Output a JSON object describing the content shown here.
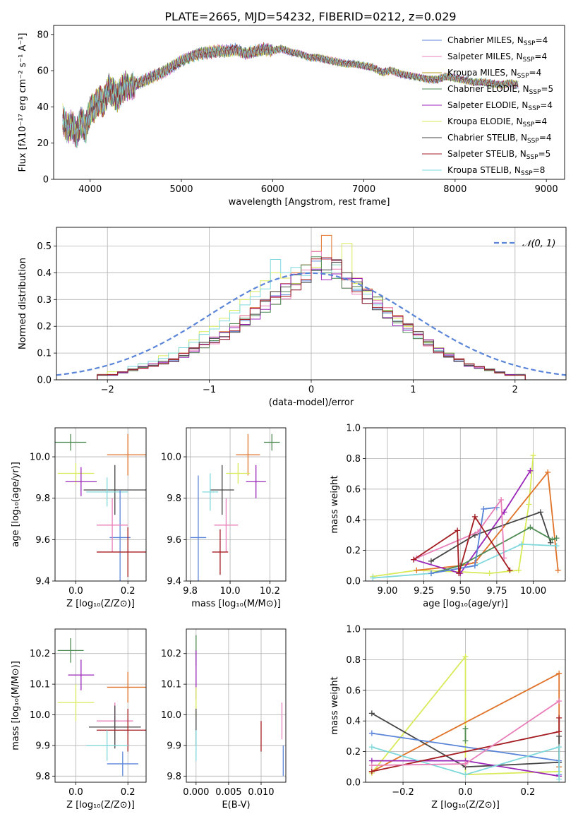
{
  "title": "PLATE=2665, MJD=54232, FIBERID=0212, z=0.029",
  "colors": {
    "Chabrier MILES": "#5b85d8",
    "Salpeter MILES": "#e87fb8",
    "Kroupa MILES": "#b59a1e",
    "Chabrier ELODIE": "#4e8a53",
    "Salpeter ELODIE": "#9a26b8",
    "Kroupa ELODIE": "#d9ea5a",
    "Chabrier STELIB": "#444444",
    "Salpeter STELIB": "#a31d22",
    "Kroupa STELIB": "#7fd8dc",
    "extra": "#e0732a"
  },
  "chart_data": [
    {
      "type": "line",
      "panel": "spectrum",
      "xlabel": "wavelength [Angstrom, rest frame]",
      "ylabel": "Flux [fλ10⁻¹⁷ erg cm⁻² s⁻¹ A⁻¹]",
      "xlim": [
        3600,
        9200
      ],
      "ylim": [
        0,
        85
      ],
      "xticks": [
        "4000",
        "5000",
        "6000",
        "7000",
        "8000",
        "9000"
      ],
      "yticks": [
        "0",
        "20",
        "40",
        "60",
        "80"
      ],
      "legend_position": "upper right",
      "legend": [
        {
          "imf": "Chabrier",
          "lib": "MILES",
          "nssp": "4",
          "color_key": "Chabrier MILES"
        },
        {
          "imf": "Salpeter",
          "lib": "MILES",
          "nssp": "4",
          "color_key": "Salpeter MILES"
        },
        {
          "imf": "Kroupa",
          "lib": "MILES",
          "nssp": "4",
          "color_key": "Kroupa MILES"
        },
        {
          "imf": "Chabrier",
          "lib": "ELODIE",
          "nssp": "5",
          "color_key": "Chabrier ELODIE"
        },
        {
          "imf": "Salpeter",
          "lib": "ELODIE",
          "nssp": "4",
          "color_key": "Salpeter ELODIE"
        },
        {
          "imf": "Kroupa",
          "lib": "ELODIE",
          "nssp": "4",
          "color_key": "Kroupa ELODIE"
        },
        {
          "imf": "Chabrier",
          "lib": "STELIB",
          "nssp": "4",
          "color_key": "Chabrier STELIB"
        },
        {
          "imf": "Salpeter",
          "lib": "STELIB",
          "nssp": "5",
          "color_key": "Salpeter STELIB"
        },
        {
          "imf": "Kroupa",
          "lib": "STELIB",
          "nssp": "8",
          "color_key": "Kroupa STELIB"
        }
      ],
      "x": [
        3700,
        3750,
        3800,
        3850,
        3900,
        3950,
        4000,
        4050,
        4100,
        4150,
        4200,
        4250,
        4300,
        4350,
        4400,
        4500,
        4600,
        4700,
        4800,
        4900,
        5000,
        5100,
        5200,
        5300,
        5400,
        5500,
        5600,
        5700,
        5800,
        5900,
        6000,
        6100,
        6200,
        6300,
        6400,
        6500,
        6600,
        6700,
        6800,
        6900,
        7000,
        7100,
        7200,
        7300,
        7400,
        7500,
        7600,
        7700,
        7800,
        7900,
        8000,
        8100,
        8200,
        8300,
        8400,
        8500,
        8600,
        8700
      ],
      "y": [
        33,
        28,
        30,
        25,
        32,
        28,
        38,
        40,
        44,
        42,
        50,
        48,
        45,
        50,
        52,
        53,
        55,
        57,
        59,
        62,
        65,
        67,
        69,
        70,
        71,
        71,
        72,
        70,
        71,
        72,
        71,
        72,
        70,
        69,
        67,
        67,
        66,
        65,
        64,
        64,
        63,
        62,
        59,
        60,
        58,
        57,
        56,
        55,
        55,
        57,
        56,
        55,
        54,
        54,
        53,
        52,
        53,
        52
      ]
    },
    {
      "type": "bar",
      "panel": "residual histogram",
      "xlabel": "(data-model)/error",
      "ylabel": "Normed distribution",
      "xlim": [
        -2.5,
        2.5
      ],
      "ylim": [
        0,
        0.57
      ],
      "xticks": [
        "−2",
        "−1",
        "0",
        "1",
        "2"
      ],
      "yticks": [
        "0.0",
        "0.1",
        "0.2",
        "0.3",
        "0.4",
        "0.5"
      ],
      "legend": "𝒩(0, 1)",
      "legend_position": "upper right",
      "bin_width": 0.1,
      "series": [
        {
          "color_key": "extra",
          "values": [
            0.02,
            0.02,
            0.03,
            0.04,
            0.05,
            0.06,
            0.07,
            0.08,
            0.1,
            0.12,
            0.14,
            0.16,
            0.18,
            0.21,
            0.24,
            0.27,
            0.3,
            0.33,
            0.36,
            0.4,
            0.43,
            0.48,
            0.54,
            0.45,
            0.4,
            0.38,
            0.34,
            0.31,
            0.27,
            0.24,
            0.21,
            0.18,
            0.15,
            0.12,
            0.1,
            0.08,
            0.06,
            0.05,
            0.04,
            0.03,
            0.02,
            0.02
          ]
        },
        {
          "color_key": "Kroupa ELODIE",
          "values": [
            0.02,
            0.03,
            0.03,
            0.04,
            0.06,
            0.07,
            0.09,
            0.1,
            0.12,
            0.15,
            0.18,
            0.2,
            0.23,
            0.26,
            0.3,
            0.33,
            0.37,
            0.4,
            0.38,
            0.36,
            0.4,
            0.42,
            0.45,
            0.43,
            0.51,
            0.36,
            0.33,
            0.3,
            0.26,
            0.23,
            0.2,
            0.17,
            0.14,
            0.12,
            0.1,
            0.08,
            0.06,
            0.05,
            0.04,
            0.03,
            0.02,
            0.02
          ]
        },
        {
          "color_key": "Kroupa STELIB",
          "values": [
            0.02,
            0.02,
            0.03,
            0.05,
            0.06,
            0.07,
            0.08,
            0.1,
            0.12,
            0.14,
            0.17,
            0.19,
            0.22,
            0.25,
            0.28,
            0.31,
            0.34,
            0.45,
            0.4,
            0.42,
            0.39,
            0.41,
            0.4,
            0.43,
            0.38,
            0.34,
            0.32,
            0.28,
            0.25,
            0.22,
            0.19,
            0.16,
            0.13,
            0.11,
            0.09,
            0.07,
            0.06,
            0.05,
            0.04,
            0.03,
            0.02,
            0.02
          ]
        }
      ],
      "curve_mean": 0,
      "curve_sigma": 1
    },
    {
      "type": "scatter",
      "panel": "age vs Z",
      "xlabel": "Z [log₁₀(Z/Z⊙)]",
      "ylabel": "age  [log₁₀(age/yr)]",
      "xlim": [
        -0.08,
        0.27
      ],
      "ylim": [
        9.4,
        10.14
      ],
      "xticks": [
        "0.0",
        "0.2"
      ],
      "yticks": [
        "9.4",
        "9.6",
        "9.8",
        "10.0"
      ],
      "points": [
        {
          "color_key": "Chabrier ELODIE",
          "x": -0.02,
          "y": 10.07,
          "ex": 0.06,
          "ey": 0.04
        },
        {
          "color_key": "extra",
          "x": 0.2,
          "y": 10.01,
          "ex": 0.08,
          "ey": 0.1
        },
        {
          "color_key": "Kroupa ELODIE",
          "x": 0.0,
          "y": 9.92,
          "ex": 0.07,
          "ey": 0.05
        },
        {
          "color_key": "Salpeter ELODIE",
          "x": 0.02,
          "y": 9.88,
          "ex": 0.06,
          "ey": 0.07
        },
        {
          "color_key": "Chabrier STELIB",
          "x": 0.15,
          "y": 9.84,
          "ex": 0.12,
          "ey": 0.12
        },
        {
          "color_key": "Kroupa STELIB",
          "x": 0.12,
          "y": 9.83,
          "ex": 0.08,
          "ey": 0.07
        },
        {
          "color_key": "Chabrier MILES",
          "x": 0.17,
          "y": 9.61,
          "ex": 0.04,
          "ey": 0.23
        },
        {
          "color_key": "Salpeter MILES",
          "x": 0.14,
          "y": 9.67,
          "ex": 0.06,
          "ey": 0.13
        },
        {
          "color_key": "Salpeter STELIB",
          "x": 0.2,
          "y": 9.54,
          "ex": 0.12,
          "ey": 0.12
        }
      ]
    },
    {
      "type": "scatter",
      "panel": "age vs mass",
      "xlabel": "mass [log₁₀(M/M⊙)]",
      "ylabel": "",
      "xlim": [
        9.78,
        10.28
      ],
      "ylim": [
        9.4,
        10.14
      ],
      "xticks": [
        "9.8",
        "10.0",
        "10.2"
      ],
      "yticks": [
        "9.4",
        "9.6",
        "9.8",
        "10.0"
      ],
      "points": [
        {
          "color_key": "Chabrier ELODIE",
          "x": 10.21,
          "y": 10.07,
          "ex": 0.04,
          "ey": 0.04
        },
        {
          "color_key": "extra",
          "x": 10.09,
          "y": 10.01,
          "ex": 0.06,
          "ey": 0.1
        },
        {
          "color_key": "Kroupa ELODIE",
          "x": 10.04,
          "y": 9.92,
          "ex": 0.06,
          "ey": 0.05
        },
        {
          "color_key": "Salpeter ELODIE",
          "x": 10.13,
          "y": 9.88,
          "ex": 0.05,
          "ey": 0.08
        },
        {
          "color_key": "Chabrier STELIB",
          "x": 9.96,
          "y": 9.84,
          "ex": 0.06,
          "ey": 0.12
        },
        {
          "color_key": "Kroupa STELIB",
          "x": 9.9,
          "y": 9.83,
          "ex": 0.04,
          "ey": 0.09
        },
        {
          "color_key": "Chabrier MILES",
          "x": 9.84,
          "y": 9.61,
          "ex": 0.04,
          "ey": 0.3
        },
        {
          "color_key": "Salpeter MILES",
          "x": 9.98,
          "y": 9.67,
          "ex": 0.06,
          "ey": 0.13
        },
        {
          "color_key": "Salpeter STELIB",
          "x": 9.95,
          "y": 9.54,
          "ex": 0.04,
          "ey": 0.11
        }
      ]
    },
    {
      "type": "line",
      "panel": "mass weight vs age",
      "xlabel": "age  [log₁₀(age/yr)]",
      "ylabel": "mass weight",
      "xlim": [
        8.85,
        10.22
      ],
      "ylim": [
        0,
        1.0
      ],
      "xticks": [
        "9.00",
        "9.25",
        "9.50",
        "9.75",
        "10.00"
      ],
      "yticks": [
        "0.0",
        "0.2",
        "0.4",
        "0.6",
        "0.8",
        "1.0"
      ],
      "series": [
        {
          "color_key": "Kroupa ELODIE",
          "x": [
            8.9,
            9.2,
            9.5,
            9.7,
            9.9,
            9.97,
            10.0
          ],
          "y": [
            0.03,
            0.07,
            0.06,
            0.05,
            0.07,
            0.5,
            0.82
          ]
        },
        {
          "color_key": "extra",
          "x": [
            9.2,
            9.5,
            9.6,
            10.1,
            10.17
          ],
          "y": [
            0.07,
            0.1,
            0.12,
            0.71,
            0.07
          ]
        },
        {
          "color_key": "Salpeter ELODIE",
          "x": [
            9.18,
            9.5,
            9.8,
            9.98
          ],
          "y": [
            0.14,
            0.05,
            0.45,
            0.72
          ]
        },
        {
          "color_key": "Chabrier STELIB",
          "x": [
            9.3,
            9.6,
            10.05,
            10.12
          ],
          "y": [
            0.13,
            0.3,
            0.45,
            0.25
          ]
        },
        {
          "color_key": "Chabrier ELODIE",
          "x": [
            9.3,
            9.5,
            9.98,
            10.13,
            10.16
          ],
          "y": [
            0.05,
            0.1,
            0.35,
            0.27,
            0.28
          ]
        },
        {
          "color_key": "Kroupa STELIB",
          "x": [
            8.9,
            9.3,
            9.6,
            9.92,
            10.16
          ],
          "y": [
            0.02,
            0.05,
            0.1,
            0.24,
            0.23
          ]
        },
        {
          "color_key": "Chabrier MILES",
          "x": [
            9.3,
            9.6,
            9.66,
            9.75
          ],
          "y": [
            0.05,
            0.1,
            0.47,
            0.48
          ]
        },
        {
          "color_key": "Salpeter MILES",
          "x": [
            9.2,
            9.62,
            9.78,
            9.8
          ],
          "y": [
            0.15,
            0.32,
            0.53,
            0.15
          ]
        },
        {
          "color_key": "Salpeter STELIB",
          "x": [
            9.18,
            9.48,
            9.49,
            9.6,
            9.84
          ],
          "y": [
            0.14,
            0.33,
            0.05,
            0.42,
            0.07
          ]
        }
      ]
    },
    {
      "type": "scatter",
      "panel": "mass vs Z",
      "xlabel": "Z [log₁₀(Z/Z⊙)]",
      "ylabel": "mass [log₁₀(M/M⊙)]",
      "xlim": [
        -0.08,
        0.27
      ],
      "ylim": [
        9.78,
        10.28
      ],
      "xticks": [
        "0.0",
        "0.2"
      ],
      "yticks": [
        "9.8",
        "9.9",
        "10.0",
        "10.1",
        "10.2"
      ],
      "points": [
        {
          "color_key": "Chabrier ELODIE",
          "x": -0.02,
          "y": 10.21,
          "ex": 0.05,
          "ey": 0.04
        },
        {
          "color_key": "Salpeter ELODIE",
          "x": 0.02,
          "y": 10.13,
          "ex": 0.05,
          "ey": 0.05
        },
        {
          "color_key": "extra",
          "x": 0.2,
          "y": 10.09,
          "ex": 0.08,
          "ey": 0.05
        },
        {
          "color_key": "Kroupa ELODIE",
          "x": 0.0,
          "y": 10.04,
          "ex": 0.07,
          "ey": 0.06
        },
        {
          "color_key": "Salpeter MILES",
          "x": 0.15,
          "y": 9.98,
          "ex": 0.07,
          "ey": 0.06
        },
        {
          "color_key": "Chabrier STELIB",
          "x": 0.15,
          "y": 9.96,
          "ex": 0.1,
          "ey": 0.07
        },
        {
          "color_key": "Salpeter STELIB",
          "x": 0.2,
          "y": 9.95,
          "ex": 0.12,
          "ey": 0.07
        },
        {
          "color_key": "Kroupa STELIB",
          "x": 0.12,
          "y": 9.9,
          "ex": 0.08,
          "ey": 0.05
        },
        {
          "color_key": "Chabrier MILES",
          "x": 0.18,
          "y": 9.84,
          "ex": 0.06,
          "ey": 0.04
        }
      ]
    },
    {
      "type": "scatter",
      "panel": "mass vs E(B-V)",
      "xlabel": "E(B-V)",
      "ylabel": "",
      "xlim": [
        -0.0015,
        0.0138
      ],
      "ylim": [
        9.78,
        10.28
      ],
      "xticks": [
        "0.000",
        "0.005",
        "0.010"
      ],
      "yticks": [
        "9.8",
        "9.9",
        "10.0",
        "10.1",
        "10.2"
      ],
      "points": [
        {
          "color_key": "Chabrier ELODIE",
          "x": 0.0,
          "y": 10.21,
          "ex": 0.0,
          "ey": 0.05
        },
        {
          "color_key": "Salpeter ELODIE",
          "x": 0.0,
          "y": 10.13,
          "ex": 0.0,
          "ey": 0.08
        },
        {
          "color_key": "Kroupa ELODIE",
          "x": 0.0,
          "y": 10.04,
          "ex": 0.0,
          "ey": 0.05
        },
        {
          "color_key": "Chabrier STELIB",
          "x": 0.0,
          "y": 9.96,
          "ex": 0.0,
          "ey": 0.06
        },
        {
          "color_key": "Kroupa STELIB",
          "x": 0.0,
          "y": 9.9,
          "ex": 0.0,
          "ey": 0.05
        },
        {
          "color_key": "Salpeter STELIB",
          "x": 0.01,
          "y": 9.93,
          "ex": 0.0,
          "ey": 0.05
        },
        {
          "color_key": "Salpeter MILES",
          "x": 0.0132,
          "y": 9.98,
          "ex": 0.0,
          "ey": 0.06
        },
        {
          "color_key": "Chabrier MILES",
          "x": 0.0134,
          "y": 9.85,
          "ex": 0.0,
          "ey": 0.05
        }
      ]
    },
    {
      "type": "line",
      "panel": "mass weight vs Z",
      "xlabel": "Z [log₁₀(Z/Z⊙)]",
      "ylabel": "mass weight",
      "xlim": [
        -0.32,
        0.32
      ],
      "ylim": [
        0,
        1.0
      ],
      "xticks": [
        "−0.2",
        "0.0",
        "0.2"
      ],
      "yticks": [
        "0.0",
        "0.2",
        "0.4",
        "0.6",
        "0.8",
        "1.0"
      ],
      "series": [
        {
          "color_key": "Kroupa ELODIE",
          "x": [
            -0.3,
            0.0,
            0.0,
            0.3
          ],
          "y": [
            0.06,
            0.82,
            0.05,
            0.07
          ]
        },
        {
          "color_key": "extra",
          "x": [
            -0.3,
            0.3,
            0.3
          ],
          "y": [
            0.07,
            0.71,
            0.1
          ]
        },
        {
          "color_key": "Chabrier STELIB",
          "x": [
            -0.3,
            0.0,
            0.3,
            0.3
          ],
          "y": [
            0.45,
            0.1,
            0.13,
            0.3
          ]
        },
        {
          "color_key": "Chabrier MILES",
          "x": [
            -0.3,
            0.3,
            0.3
          ],
          "y": [
            0.32,
            0.14,
            0.05
          ]
        },
        {
          "color_key": "Salpeter ELODIE",
          "x": [
            -0.3,
            0.0,
            0.3
          ],
          "y": [
            0.14,
            0.14,
            0.04
          ]
        },
        {
          "color_key": "Kroupa STELIB",
          "x": [
            -0.3,
            0.0,
            0.3,
            0.3
          ],
          "y": [
            0.23,
            0.05,
            0.23,
            0.02
          ]
        },
        {
          "color_key": "Salpeter STELIB",
          "x": [
            -0.3,
            0.3,
            0.3
          ],
          "y": [
            0.07,
            0.33,
            0.42
          ]
        },
        {
          "color_key": "Chabrier ELODIE",
          "x": [
            0.0,
            0.0
          ],
          "y": [
            0.35,
            0.27
          ]
        },
        {
          "color_key": "Salpeter MILES",
          "x": [
            -0.3,
            0.0,
            0.3
          ],
          "y": [
            0.11,
            0.12,
            0.53
          ]
        }
      ]
    }
  ]
}
